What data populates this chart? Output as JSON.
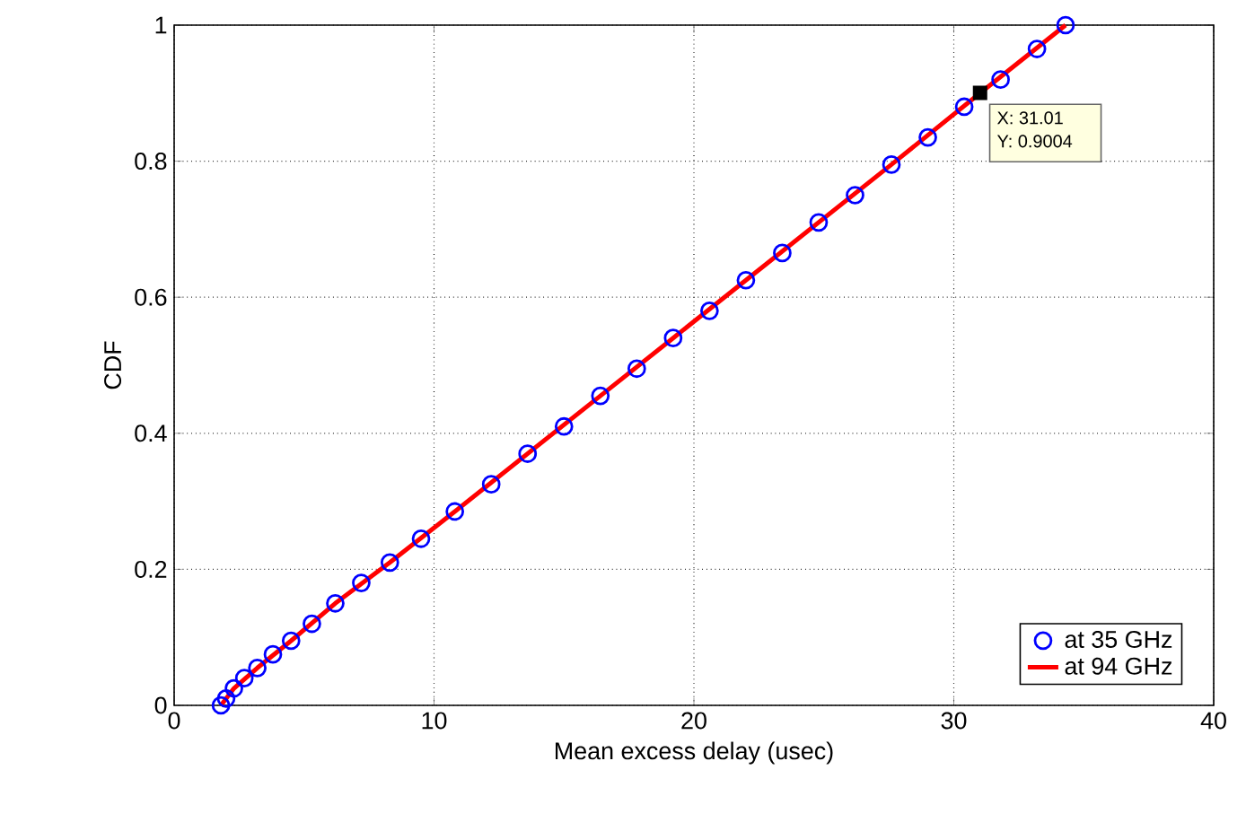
{
  "chart_data": {
    "type": "line",
    "xlabel": "Mean excess delay (usec)",
    "ylabel": "CDF",
    "xlim": [
      0,
      40
    ],
    "ylim": [
      0,
      1
    ],
    "xticks": [
      0,
      10,
      20,
      30,
      40
    ],
    "yticks": [
      0,
      0.2,
      0.4,
      0.6,
      0.8,
      1
    ],
    "grid": true,
    "legend": "bottom right",
    "series": [
      {
        "name": "at 35 GHz",
        "type": "scatter",
        "marker": "circle",
        "color": "#0000ff",
        "x": [
          1.8,
          2.0,
          2.3,
          2.7,
          3.2,
          3.8,
          4.5,
          5.3,
          6.2,
          7.2,
          8.3,
          9.5,
          10.8,
          12.2,
          13.6,
          15.0,
          16.4,
          17.8,
          19.2,
          20.6,
          22.0,
          23.4,
          24.8,
          26.2,
          27.6,
          29.0,
          30.4,
          31.8,
          33.2,
          34.3
        ],
        "values": [
          0.0,
          0.01,
          0.025,
          0.04,
          0.055,
          0.075,
          0.095,
          0.12,
          0.15,
          0.18,
          0.21,
          0.245,
          0.285,
          0.325,
          0.37,
          0.41,
          0.455,
          0.495,
          0.54,
          0.58,
          0.625,
          0.665,
          0.71,
          0.75,
          0.795,
          0.835,
          0.88,
          0.92,
          0.965,
          1.0
        ]
      },
      {
        "name": "at 94 GHz",
        "marker": "none",
        "line_style": "solid",
        "color": "#ff0000",
        "x": [
          1.8,
          2.3,
          3.2,
          4.5,
          6.2,
          8.3,
          10.8,
          13.6,
          16.4,
          19.2,
          22.0,
          24.8,
          27.6,
          31.01,
          34.3
        ],
        "values": [
          0.0,
          0.025,
          0.055,
          0.095,
          0.15,
          0.21,
          0.285,
          0.37,
          0.455,
          0.54,
          0.625,
          0.71,
          0.795,
          0.9,
          1.0
        ]
      }
    ],
    "annotations": [
      {
        "text": "X: 31.01",
        "x": 31.01,
        "y": 0.9004
      },
      {
        "text": "Y: 0.9004",
        "x": 31.01,
        "y": 0.9004
      }
    ]
  }
}
